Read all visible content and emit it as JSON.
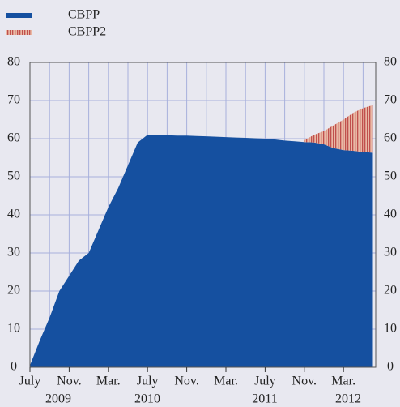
{
  "chart_data": {
    "type": "stacked-area",
    "categories": [
      "July",
      null,
      null,
      null,
      "Nov.",
      null,
      null,
      null,
      "Mar.",
      null,
      null,
      null,
      "July",
      null,
      null,
      null,
      "Nov.",
      null,
      null,
      null,
      "Mar.",
      null,
      null,
      null,
      "July",
      null,
      null,
      null,
      "Nov.",
      null,
      null,
      null,
      "Mar.",
      null,
      null,
      null
    ],
    "x_year_labels": [
      "2009",
      "2010",
      "2011",
      "2012"
    ],
    "series": [
      {
        "name": "CBPP",
        "color": "#1550a0",
        "values": [
          0.5,
          7,
          13,
          20,
          24,
          28,
          30,
          36,
          42,
          47,
          53,
          59,
          61,
          61,
          60.9,
          60.8,
          60.8,
          60.7,
          60.6,
          60.5,
          60.4,
          60.3,
          60.2,
          60.1,
          60,
          59.8,
          59.5,
          59.3,
          59.1,
          59,
          58.5,
          57.5,
          57,
          56.8,
          56.5,
          56.3
        ]
      },
      {
        "name": "CBPP2",
        "color": "#c0504d",
        "values": [
          null,
          null,
          null,
          null,
          null,
          null,
          null,
          null,
          null,
          null,
          null,
          null,
          null,
          null,
          null,
          null,
          null,
          null,
          null,
          null,
          null,
          null,
          null,
          null,
          null,
          null,
          null,
          null,
          0.5,
          2,
          3.5,
          6,
          8,
          10,
          11.5,
          12.5
        ]
      }
    ],
    "ylim": [
      0,
      80
    ],
    "yticks": [
      0,
      10,
      20,
      30,
      40,
      50,
      60,
      70,
      80
    ],
    "grid": true
  }
}
